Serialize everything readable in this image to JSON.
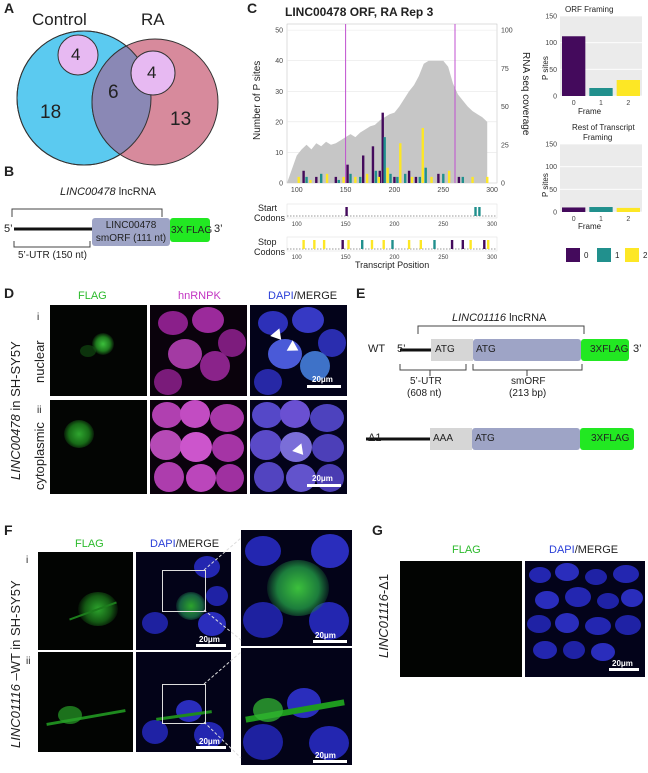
{
  "panels": {
    "A": {
      "letter": "A",
      "control_label": "Control",
      "ra_label": "RA",
      "control_only": "18",
      "overlap": "6",
      "ra_only": "13",
      "control_inner": "4",
      "ra_inner": "4",
      "colors": {
        "control": "#5bcaf0",
        "ra": "#d78a9c",
        "overlap": "#8a88b5",
        "inner": "#e7b9f2"
      }
    },
    "B": {
      "letter": "B",
      "lncrna": "LINC00478",
      "lncrna_suffix": " lncRNA",
      "five_prime": "5’",
      "utr": "5’-UTR (150 nt)",
      "smorf_line1": "LINC00478",
      "smorf_line2": "smORF (111 nt)",
      "flag": "3X FLAG",
      "three_prime": "3’"
    },
    "C": {
      "letter": "C",
      "title": "LINC00478 ORF, RA Rep 3",
      "y_left": "Number of P sites",
      "y_right": "RNA seq coverage",
      "start_codons": [
        "Start",
        "Codons"
      ],
      "stop_codons": [
        "Stop",
        "Codons"
      ],
      "x_label": "Transcript Position",
      "orf_framing_title": "ORF Framing",
      "rest_title": [
        "Rest of Transcript",
        "Framing"
      ],
      "psites_label": "P sites",
      "frame_label": "Frame",
      "legend": [
        "0",
        "1",
        "2"
      ],
      "frame_colors": [
        "#440a5c",
        "#21908d",
        "#fde725"
      ]
    },
    "D": {
      "letter": "D",
      "flag": "FLAG",
      "hnrnpk": "hnRNPK",
      "dapi": "DAPI",
      "merge": "/MERGE",
      "row_i": "i",
      "row_ii": "ii",
      "nuclear": "nuclear",
      "cytoplasmic": "cytoplasmic",
      "side_gene": "LINC00478",
      "side_suffix": " in SH-SY5Y",
      "scale": "20μm"
    },
    "E": {
      "letter": "E",
      "lncrna": "LINC01116",
      "lncrna_suffix": " lncRNA",
      "wt": "WT",
      "delta": "Δ1",
      "five_prime": "5’",
      "three_prime": "3’",
      "atg1": "ATG",
      "atg2": "ATG",
      "aaa": "AAA",
      "flag": "3XFLAG",
      "utr": [
        "5’-UTR",
        "(608 nt)"
      ],
      "smorf": [
        "smORF",
        "(213 bp)"
      ]
    },
    "F": {
      "letter": "F",
      "flag": "FLAG",
      "dapi": "DAPI",
      "merge": "/MERGE",
      "row_i": "i",
      "row_ii": "ii",
      "side_gene": "LINC01116",
      "side_suffix": " –WT in SH-SY5Y",
      "scale": "20μm"
    },
    "G": {
      "letter": "G",
      "flag": "FLAG",
      "dapi": "DAPI",
      "merge": "/MERGE",
      "side_gene": "LINC01116",
      "side_suffix": "-Δ1",
      "scale": "20μm"
    }
  },
  "chart_data": [
    {
      "type": "bar",
      "title": "LINC00478 ORF, RA Rep 3",
      "xlabel": "Transcript Position",
      "ylabel": "Number of P sites",
      "y2label": "RNA seq coverage",
      "xlim": [
        90,
        305
      ],
      "ylim": [
        0,
        52
      ],
      "y2lim": [
        0,
        104
      ],
      "xticks": [
        100,
        150,
        200,
        250,
        300
      ],
      "yticks": [
        0,
        10,
        20,
        30,
        40,
        50
      ],
      "y2ticks": [
        0,
        25,
        50,
        75,
        100
      ],
      "orf_bounds": [
        150,
        262
      ],
      "coverage": {
        "x": [
          100,
          105,
          110,
          115,
          120,
          125,
          130,
          135,
          140,
          145,
          150,
          155,
          160,
          165,
          170,
          175,
          180,
          185,
          190,
          195,
          200,
          205,
          210,
          215,
          220,
          225,
          230,
          235,
          240,
          245,
          250,
          255,
          260,
          265,
          270,
          275,
          280,
          285,
          290,
          295
        ],
        "y": [
          18,
          22,
          25,
          22,
          26,
          24,
          27,
          25,
          26,
          28,
          30,
          32,
          30,
          33,
          35,
          37,
          38,
          41,
          43,
          45,
          46,
          50,
          55,
          60,
          64,
          70,
          78,
          80,
          80,
          80,
          80,
          76,
          65,
          58,
          54,
          50,
          47,
          45,
          43,
          40
        ]
      },
      "series": [
        {
          "name": "0",
          "x": [
            107,
            120,
            140,
            152,
            168,
            178,
            185,
            188,
            200,
            215,
            222,
            245,
            266
          ],
          "values": [
            4,
            2,
            2,
            6,
            9,
            12,
            4,
            23,
            2,
            4,
            2,
            3,
            2
          ]
        },
        {
          "name": "1",
          "x": [
            110,
            125,
            143,
            155,
            165,
            181,
            190,
            196,
            203,
            211,
            226,
            232,
            250,
            270
          ],
          "values": [
            2,
            3,
            1,
            3,
            2,
            4,
            15,
            3,
            2,
            3,
            2,
            5,
            3,
            2
          ]
        },
        {
          "name": "2",
          "x": [
            102,
            114,
            131,
            148,
            160,
            172,
            184,
            193,
            206,
            218,
            229,
            238,
            256,
            280,
            295
          ],
          "values": [
            2,
            1,
            3,
            2,
            2,
            3,
            2,
            5,
            13,
            2,
            18,
            2,
            4,
            2,
            2
          ]
        }
      ]
    },
    {
      "type": "bar",
      "title": "ORF Framing",
      "xlabel": "Frame",
      "ylabel": "P sites",
      "categories": [
        "0",
        "1",
        "2"
      ],
      "values": [
        112,
        15,
        30
      ],
      "ylim": [
        0,
        150
      ],
      "yticks": [
        0,
        50,
        100,
        150
      ]
    },
    {
      "type": "bar",
      "title": "Rest of Transcript Framing",
      "xlabel": "Frame",
      "ylabel": "P sites",
      "categories": [
        "0",
        "1",
        "2"
      ],
      "values": [
        10,
        11,
        9
      ],
      "ylim": [
        0,
        150
      ],
      "yticks": [
        0,
        50,
        100,
        150
      ]
    }
  ]
}
